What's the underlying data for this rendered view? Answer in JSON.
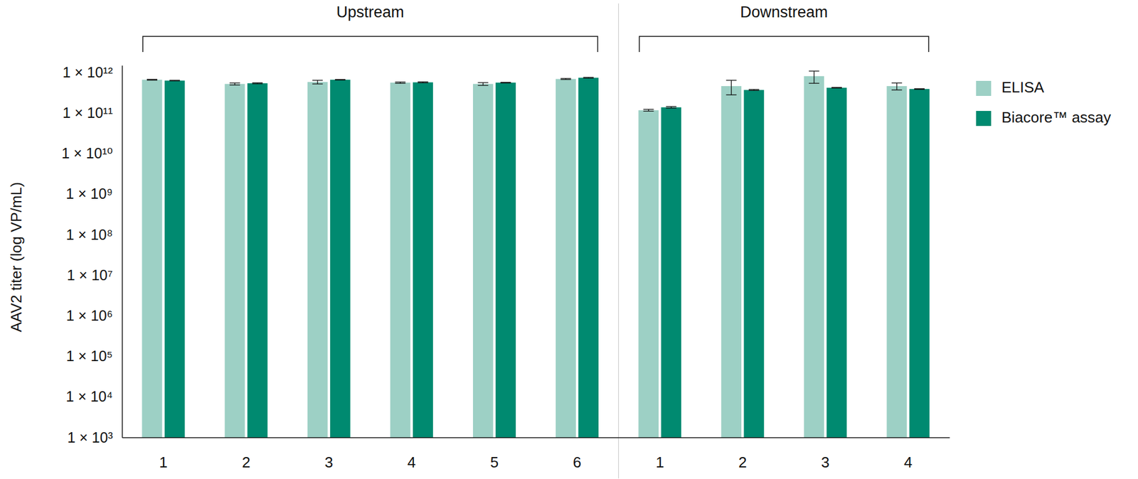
{
  "chart_data": {
    "type": "bar",
    "y_label": "AAV2 titer (log VP/mL)",
    "groups": [
      {
        "name": "Upstream",
        "categories": [
          "1",
          "2",
          "3",
          "4",
          "5",
          "6"
        ]
      },
      {
        "name": "Downstream",
        "categories": [
          "1",
          "2",
          "3",
          "4"
        ]
      }
    ],
    "series": [
      {
        "name": "ELISA",
        "color": "#9dd0c5",
        "values": [
          660000000000.0,
          520000000000.0,
          580000000000.0,
          560000000000.0,
          520000000000.0,
          690000000000.0,
          117000000000.0,
          460000000000.0,
          810000000000.0,
          460000000000.0
        ],
        "errors": [
          15000000000.0,
          30000000000.0,
          60000000000.0,
          20000000000.0,
          40000000000.0,
          20000000000.0,
          6000000000.0,
          180000000000.0,
          270000000000.0,
          90000000000.0
        ]
      },
      {
        "name": "Biacore™ assay",
        "color": "#008a70",
        "values": [
          630000000000.0,
          540000000000.0,
          660000000000.0,
          570000000000.0,
          560000000000.0,
          740000000000.0,
          138000000000.0,
          370000000000.0,
          420000000000.0,
          390000000000.0
        ],
        "errors": [
          10000000000.0,
          15000000000.0,
          10000000000.0,
          15000000000.0,
          10000000000.0,
          15000000000.0,
          6000000000.0,
          10000000000.0,
          8000000000.0,
          8000000000.0
        ]
      }
    ],
    "ylim": [
      1000,
      1500000000000.0
    ],
    "yticks": [
      {
        "value": 1000,
        "label": "1 × 10³"
      },
      {
        "value": 10000,
        "label": "1 × 10⁴"
      },
      {
        "value": 100000,
        "label": "1 × 10⁵"
      },
      {
        "value": 1000000,
        "label": "1 × 10⁶"
      },
      {
        "value": 10000000,
        "label": "1 × 10⁷"
      },
      {
        "value": 100000000,
        "label": "1 × 10⁸"
      },
      {
        "value": 1000000000,
        "label": "1 × 10⁹"
      },
      {
        "value": 10000000000,
        "label": "1 × 10¹⁰"
      },
      {
        "value": 100000000000,
        "label": "1 × 10¹¹"
      },
      {
        "value": 1000000000000,
        "label": "1 × 10¹²"
      }
    ],
    "log": "y",
    "grid": false,
    "legend": "right",
    "data_labels": false
  }
}
